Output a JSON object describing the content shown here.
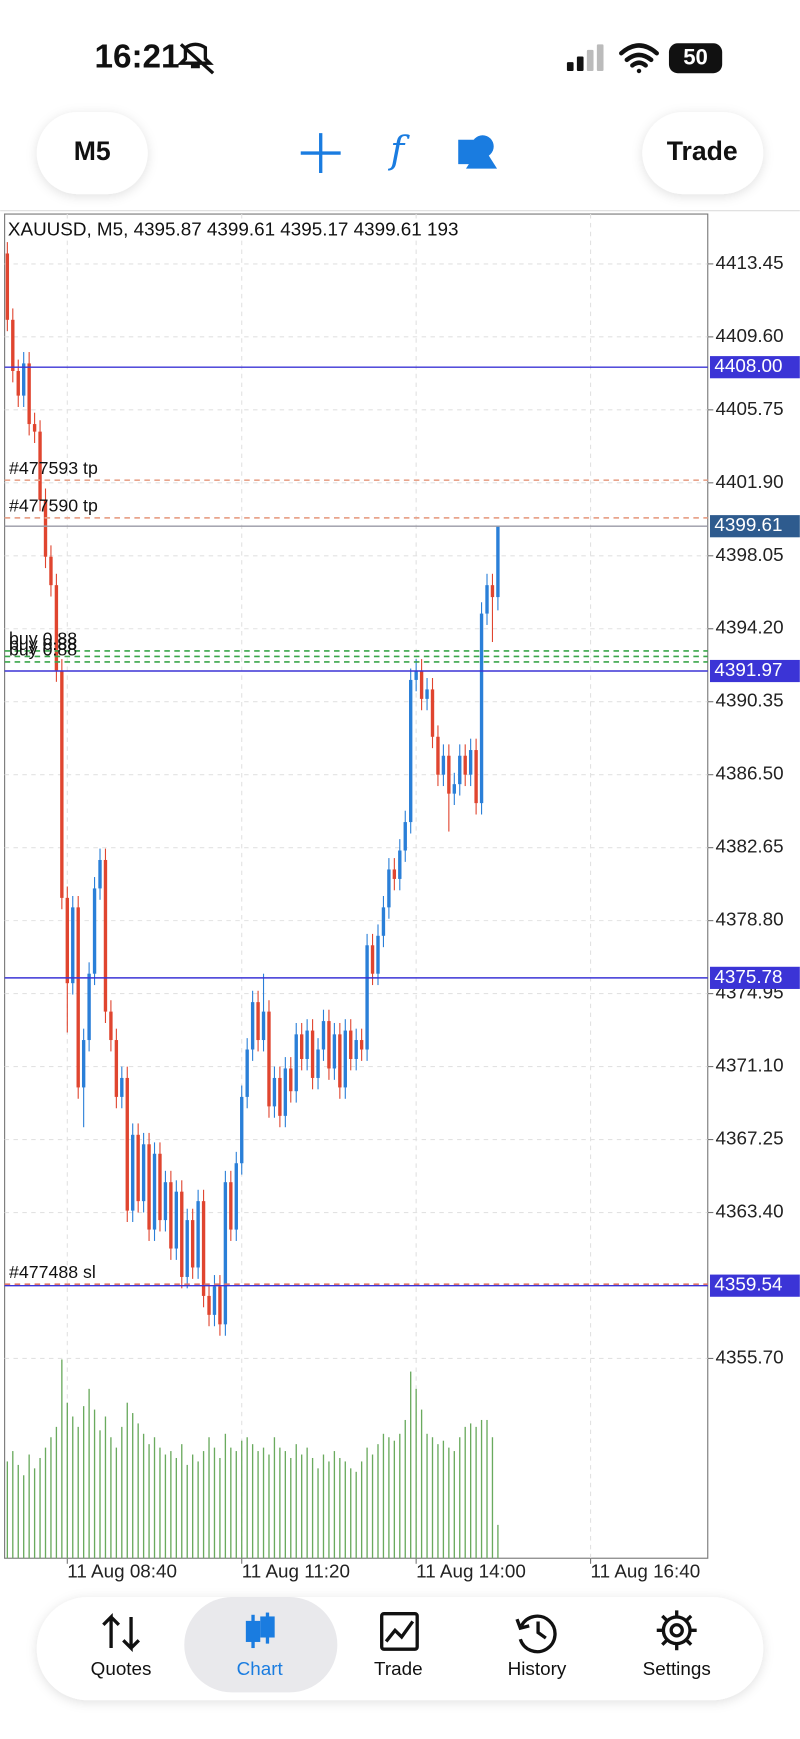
{
  "status_bar": {
    "time": "16:21",
    "battery": "50"
  },
  "toolbar": {
    "timeframe": "M5",
    "trade": "Trade"
  },
  "chart_data": {
    "type": "candlestick",
    "title": "XAUUSD, M5, 4395.87 4399.61 4395.17 4399.61 193",
    "up_color": "#2a7fd8",
    "down_color": "#e0452f",
    "volume_color": "#6aaa5e",
    "grid": true,
    "xlim": [
      -0.5,
      128.5
    ],
    "xticks": [
      {
        "value": 11,
        "label": "11 Aug 08:40"
      },
      {
        "value": 43,
        "label": "11 Aug 11:20"
      },
      {
        "value": 75,
        "label": "11 Aug 14:00"
      },
      {
        "value": 107,
        "label": "11 Aug 16:40"
      }
    ],
    "ylim": [
      4345.16,
      4416.08
    ],
    "yticks": [
      4413.45,
      {
        "value": 4409.6,
        "label": "4409.60"
      },
      4405.75,
      {
        "value": 4401.9,
        "label": "4401.90"
      },
      4398.05,
      {
        "value": 4394.2,
        "label": "4394.20"
      },
      4390.35,
      {
        "value": 4386.5,
        "label": "4386.50"
      },
      4382.65,
      {
        "value": 4378.8,
        "label": "4378.80"
      },
      4374.95,
      {
        "value": 4371.1,
        "label": "4371.10"
      },
      4367.25,
      {
        "value": 4363.4,
        "label": "4363.40"
      },
      {
        "value": 4355.7,
        "label": "4355.70"
      }
    ],
    "volume_lim": [
      0,
      1200
    ],
    "open": [
      4414.0,
      4410.5,
      4407.8,
      4406.5,
      4408.2,
      4405.0,
      4404.6,
      4401.0,
      4398.0,
      4396.5,
      4392.0,
      4380.0,
      4375.5,
      4379.5,
      4370.0,
      4372.5,
      4376.0,
      4380.5,
      4382.0,
      4374.0,
      4372.5,
      4369.5,
      4370.5,
      4363.5,
      4367.5,
      4364.0,
      4367.0,
      4362.5,
      4366.5,
      4363.0,
      4365.0,
      4361.5,
      4364.5,
      4360.0,
      4363.0,
      4360.5,
      4364.0,
      4359.0,
      4358.0,
      4359.5,
      4357.5,
      4365.0,
      4362.5,
      4366.0,
      4369.5,
      4372.0,
      4374.5,
      4372.5,
      4374.0,
      4369.0,
      4370.5,
      4368.5,
      4371.0,
      4369.8,
      4372.8,
      4371.5,
      4373.0,
      4370.5,
      4372.0,
      4373.5,
      4371.0,
      4372.8,
      4370.0,
      4373.0,
      4371.5,
      4372.5,
      4372.0,
      4377.5,
      4376.0,
      4378.0,
      4379.5,
      4381.5,
      4381.0,
      4382.5,
      4384.0,
      4391.5,
      4392.0,
      4390.5,
      4391.0,
      4388.5,
      4386.5,
      4387.5,
      4385.5,
      4386.0,
      4387.5,
      4386.5,
      4387.8,
      4385.0,
      4395.0,
      4396.5,
      4395.87
    ],
    "high": [
      4414.6,
      4411.1,
      4408.4,
      4408.8,
      4408.8,
      4405.6,
      4405.2,
      4401.6,
      4398.6,
      4397.1,
      4392.6,
      4380.6,
      4380.1,
      4380.1,
      4373.1,
      4376.6,
      4381.1,
      4382.6,
      4382.6,
      4374.6,
      4373.1,
      4371.1,
      4371.1,
      4368.1,
      4368.1,
      4367.6,
      4367.6,
      4367.1,
      4367.1,
      4365.6,
      4365.6,
      4365.1,
      4365.1,
      4363.6,
      4363.6,
      4364.6,
      4364.6,
      4359.6,
      4360.1,
      4360.1,
      4365.6,
      4365.6,
      4366.6,
      4370.1,
      4372.6,
      4375.1,
      4375.1,
      4376.0,
      4374.6,
      4371.1,
      4371.1,
      4371.6,
      4371.6,
      4373.4,
      4373.4,
      4373.6,
      4373.6,
      4372.6,
      4374.1,
      4374.1,
      4373.4,
      4373.4,
      4373.6,
      4373.6,
      4373.1,
      4373.1,
      4378.1,
      4378.1,
      4378.6,
      4380.1,
      4382.1,
      4382.1,
      4383.1,
      4384.6,
      4392.1,
      4392.6,
      4392.6,
      4391.6,
      4391.6,
      4389.1,
      4388.1,
      4388.1,
      4386.6,
      4388.1,
      4388.1,
      4388.4,
      4388.4,
      4395.6,
      4397.1,
      4397.1,
      4399.61
    ],
    "low": [
      4409.9,
      4407.2,
      4405.9,
      4405.9,
      4404.4,
      4404.0,
      4400.4,
      4397.4,
      4395.9,
      4391.4,
      4379.4,
      4372.9,
      4374.9,
      4369.4,
      4367.9,
      4371.9,
      4375.4,
      4379.9,
      4373.4,
      4371.9,
      4368.9,
      4368.9,
      4362.9,
      4362.9,
      4363.4,
      4363.4,
      4361.9,
      4361.9,
      4362.4,
      4362.4,
      4360.9,
      4360.9,
      4359.4,
      4359.4,
      4359.9,
      4359.9,
      4358.4,
      4357.4,
      4357.4,
      4356.9,
      4356.9,
      4361.9,
      4361.9,
      4365.4,
      4368.9,
      4371.4,
      4371.9,
      4371.9,
      4368.4,
      4368.4,
      4367.9,
      4367.9,
      4369.2,
      4369.2,
      4370.9,
      4370.9,
      4369.9,
      4369.9,
      4371.4,
      4370.4,
      4370.4,
      4369.4,
      4369.4,
      4370.9,
      4370.9,
      4371.4,
      4371.4,
      4375.4,
      4375.4,
      4377.4,
      4378.9,
      4380.4,
      4380.4,
      4381.9,
      4383.4,
      4390.9,
      4389.9,
      4389.9,
      4387.9,
      4385.9,
      4385.9,
      4383.5,
      4384.9,
      4385.4,
      4385.9,
      4385.9,
      4384.4,
      4384.4,
      4394.4,
      4393.5,
      4395.17
    ],
    "close": [
      4410.5,
      4407.8,
      4406.5,
      4408.2,
      4405.0,
      4404.6,
      4401.0,
      4398.0,
      4396.5,
      4392.0,
      4380.0,
      4375.5,
      4379.5,
      4370.0,
      4372.5,
      4376.0,
      4380.5,
      4382.0,
      4374.0,
      4372.5,
      4369.5,
      4370.5,
      4363.5,
      4367.5,
      4364.0,
      4367.0,
      4362.5,
      4366.5,
      4363.0,
      4365.0,
      4361.5,
      4364.5,
      4360.0,
      4363.0,
      4360.5,
      4364.0,
      4359.0,
      4358.0,
      4359.5,
      4357.5,
      4365.0,
      4362.5,
      4366.0,
      4369.5,
      4372.0,
      4374.5,
      4372.5,
      4374.0,
      4369.0,
      4370.5,
      4368.5,
      4371.0,
      4369.8,
      4372.8,
      4371.5,
      4373.0,
      4370.5,
      4372.0,
      4373.5,
      4371.0,
      4372.8,
      4370.0,
      4373.0,
      4371.5,
      4372.5,
      4372.0,
      4377.5,
      4376.0,
      4378.0,
      4379.5,
      4381.5,
      4381.0,
      4382.5,
      4384.0,
      4391.5,
      4392.0,
      4390.5,
      4391.0,
      4388.5,
      4386.5,
      4387.5,
      4385.5,
      4386.0,
      4387.5,
      4386.5,
      4387.8,
      4385.0,
      4395.0,
      4396.5,
      4395.87,
      4399.61
    ],
    "volume": [
      560,
      620,
      540,
      480,
      600,
      520,
      580,
      640,
      700,
      760,
      1150,
      900,
      820,
      760,
      880,
      980,
      860,
      740,
      820,
      700,
      640,
      760,
      900,
      840,
      780,
      720,
      660,
      700,
      640,
      600,
      620,
      580,
      660,
      540,
      600,
      560,
      620,
      700,
      640,
      580,
      720,
      640,
      620,
      680,
      700,
      660,
      620,
      640,
      600,
      700,
      640,
      620,
      580,
      660,
      600,
      640,
      580,
      520,
      600,
      560,
      620,
      580,
      560,
      520,
      500,
      560,
      640,
      600,
      660,
      720,
      700,
      680,
      720,
      800,
      1080,
      980,
      860,
      720,
      700,
      660,
      680,
      640,
      620,
      700,
      760,
      780,
      760,
      800,
      800,
      700,
      193
    ],
    "level_color": "#3b34d6",
    "levels": [
      {
        "value": 4408,
        "label": "4408.00"
      },
      4391.97,
      4375.78,
      4359.54
    ],
    "last_price": 4399.61,
    "last_price_color": "#2e5b8e",
    "orders": [
      {
        "label": "#477593 tp",
        "value": 4402.04,
        "color": "#e8a48c"
      },
      {
        "label": "#477590 tp",
        "value": 4400.05,
        "color": "#e8a48c"
      },
      {
        "label": "buy 0.88",
        "value": 4393.03,
        "color": "#3aa64a"
      },
      {
        "label": "buy 0.88",
        "value": 4392.74,
        "color": "#3aa64a"
      },
      {
        "label": "buy 0.88",
        "value": 4392.45,
        "color": "#3aa64a"
      },
      {
        "label": "#477488 sl",
        "value": 4359.62,
        "color": "#e0766a"
      }
    ]
  },
  "tab_bar": {
    "items": [
      "Quotes",
      "Chart",
      "Trade",
      "History",
      "Settings"
    ]
  }
}
